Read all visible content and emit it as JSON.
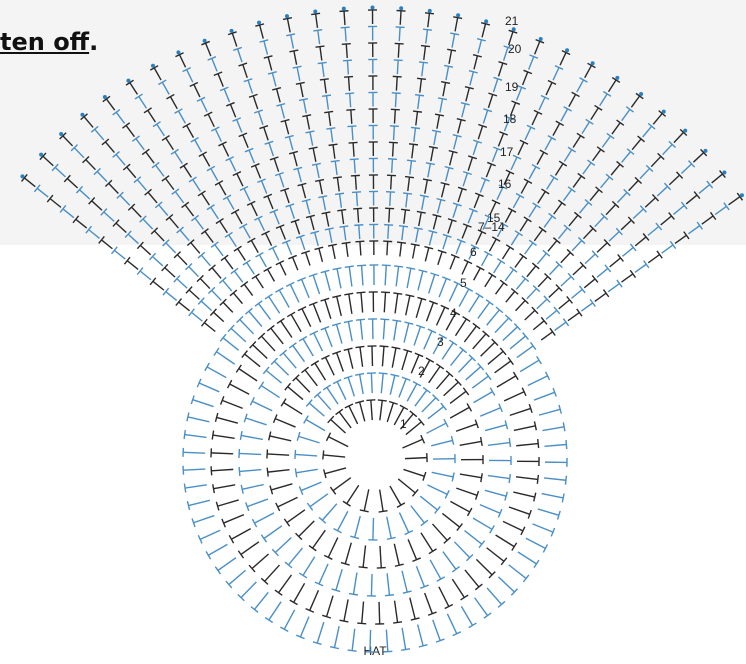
{
  "header": {
    "text": "ten off",
    "punctuation": "."
  },
  "diagram": {
    "row_labels": [
      "1",
      "2",
      "3",
      "4",
      "5",
      "6",
      "7–14",
      "15",
      "16",
      "17",
      "18",
      "19",
      "20",
      "21"
    ],
    "caption": "HAT"
  }
}
